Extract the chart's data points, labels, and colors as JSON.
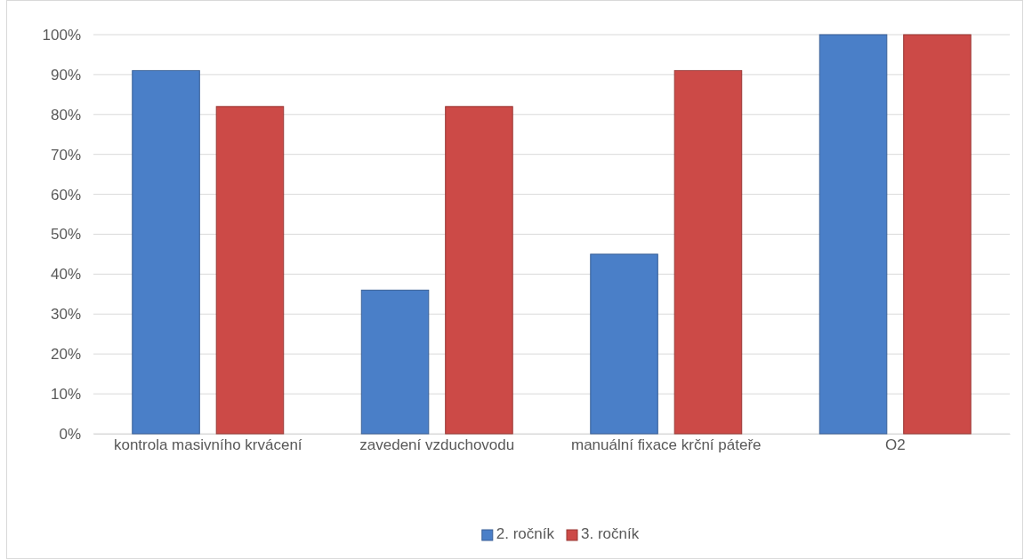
{
  "chart_data": {
    "type": "bar",
    "categories": [
      "kontrola masivního krvácení",
      "zavedení vzduchovodu",
      "manuální fixace krční páteře",
      "O2"
    ],
    "series": [
      {
        "name": "2. ročník",
        "color": "#4a7fc8",
        "values": [
          91,
          36,
          45,
          100
        ]
      },
      {
        "name": "3. ročník",
        "color": "#cc4a47",
        "values": [
          82,
          82,
          91,
          100
        ]
      }
    ],
    "ylim": [
      0,
      100
    ],
    "yticks": [
      {
        "value": 0,
        "label": "0%"
      },
      {
        "value": 10,
        "label": "10%"
      },
      {
        "value": 20,
        "label": "20%"
      },
      {
        "value": 30,
        "label": "30%"
      },
      {
        "value": 40,
        "label": "40%"
      },
      {
        "value": 50,
        "label": "50%"
      },
      {
        "value": 60,
        "label": "60%"
      },
      {
        "value": 70,
        "label": "70%"
      },
      {
        "value": 80,
        "label": "80%"
      },
      {
        "value": 90,
        "label": "90%"
      },
      {
        "value": 100,
        "label": "100%"
      }
    ],
    "grid": "y",
    "legend": "bottom"
  }
}
